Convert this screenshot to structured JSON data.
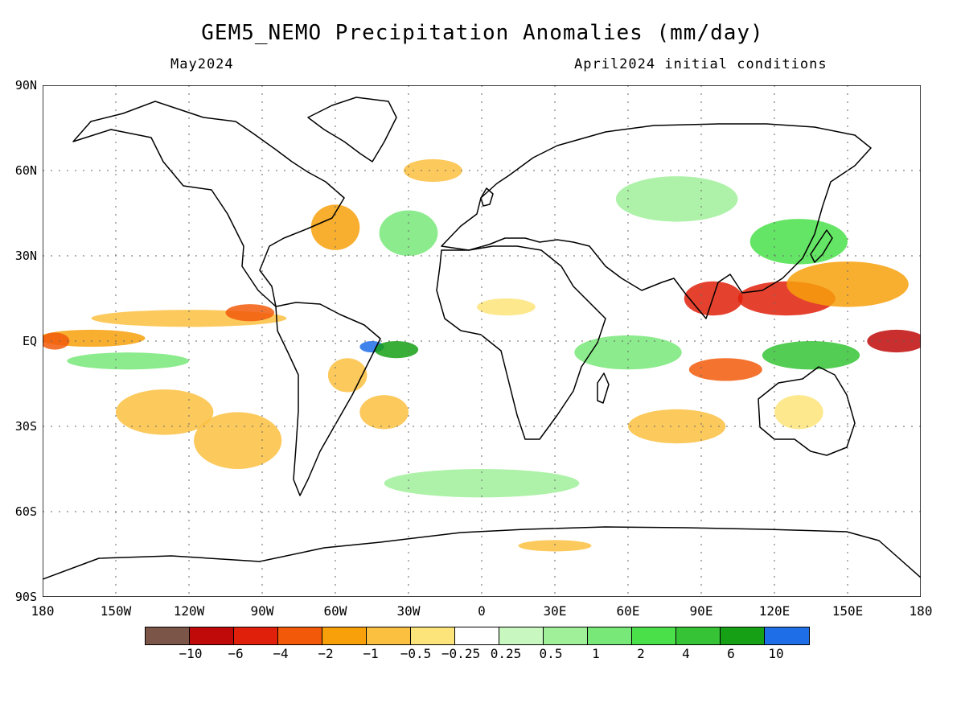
{
  "title": "GEM5_NEMO Precipitation Anomalies (mm/day)",
  "valid_month": "May2024",
  "init_text": "April2024 initial conditions",
  "lat_labels": [
    "90N",
    "60N",
    "30N",
    "EQ",
    "30S",
    "60S",
    "90S"
  ],
  "lon_labels": [
    "180",
    "150W",
    "120W",
    "90W",
    "60W",
    "30W",
    "0",
    "30E",
    "60E",
    "90E",
    "120E",
    "150E",
    "180"
  ],
  "colorbar": {
    "colors": [
      "#7a5548",
      "#c00a0a",
      "#e0200a",
      "#f25a0a",
      "#f7a00a",
      "#fbc040",
      "#fde47a",
      "#ffffff",
      "#c8f8c0",
      "#a0f09a",
      "#78e878",
      "#4ae04a",
      "#36c436",
      "#16a016",
      "#1e6ee8"
    ],
    "labels": [
      "−10",
      "−6",
      "−4",
      "−2",
      "−1",
      "−0.5",
      "−0.25",
      "0.25",
      "0.5",
      "1",
      "2",
      "4",
      "6",
      "10"
    ]
  },
  "anomaly_blobs": [
    {
      "lon": -160,
      "lat": 1,
      "rx": 22,
      "ry": 3,
      "color": "#f7a00a"
    },
    {
      "lon": -175,
      "lat": 0,
      "rx": 6,
      "ry": 3,
      "color": "#f25a0a"
    },
    {
      "lon": -120,
      "lat": 8,
      "rx": 40,
      "ry": 3,
      "color": "#fbc040"
    },
    {
      "lon": -95,
      "lat": 10,
      "rx": 10,
      "ry": 3,
      "color": "#f25a0a"
    },
    {
      "lon": -145,
      "lat": -7,
      "rx": 25,
      "ry": 3,
      "color": "#78e878"
    },
    {
      "lon": -130,
      "lat": -25,
      "rx": 20,
      "ry": 8,
      "color": "#fbc040"
    },
    {
      "lon": -100,
      "lat": -35,
      "rx": 18,
      "ry": 10,
      "color": "#fbc040"
    },
    {
      "lon": -60,
      "lat": 40,
      "rx": 10,
      "ry": 8,
      "color": "#f7a00a"
    },
    {
      "lon": -45,
      "lat": -2,
      "rx": 5,
      "ry": 2,
      "color": "#1e6ee8"
    },
    {
      "lon": -35,
      "lat": -3,
      "rx": 9,
      "ry": 3,
      "color": "#16a016"
    },
    {
      "lon": -55,
      "lat": -12,
      "rx": 8,
      "ry": 6,
      "color": "#fbc040"
    },
    {
      "lon": -40,
      "lat": -25,
      "rx": 10,
      "ry": 6,
      "color": "#fbc040"
    },
    {
      "lon": 10,
      "lat": 12,
      "rx": 12,
      "ry": 3,
      "color": "#fde47a"
    },
    {
      "lon": 60,
      "lat": -4,
      "rx": 22,
      "ry": 6,
      "color": "#78e878"
    },
    {
      "lon": 95,
      "lat": 15,
      "rx": 12,
      "ry": 6,
      "color": "#e0200a"
    },
    {
      "lon": 125,
      "lat": 15,
      "rx": 20,
      "ry": 6,
      "color": "#e0200a"
    },
    {
      "lon": 150,
      "lat": 20,
      "rx": 25,
      "ry": 8,
      "color": "#f7a00a"
    },
    {
      "lon": 170,
      "lat": 0,
      "rx": 12,
      "ry": 4,
      "color": "#c00a0a"
    },
    {
      "lon": 135,
      "lat": -5,
      "rx": 20,
      "ry": 5,
      "color": "#36c436"
    },
    {
      "lon": 100,
      "lat": -10,
      "rx": 15,
      "ry": 4,
      "color": "#f25a0a"
    },
    {
      "lon": 130,
      "lat": 35,
      "rx": 20,
      "ry": 8,
      "color": "#4ae04a"
    },
    {
      "lon": 130,
      "lat": -25,
      "rx": 10,
      "ry": 6,
      "color": "#fde47a"
    },
    {
      "lon": 80,
      "lat": -30,
      "rx": 20,
      "ry": 6,
      "color": "#fbc040"
    },
    {
      "lon": 0,
      "lat": -50,
      "rx": 40,
      "ry": 5,
      "color": "#a0f09a"
    },
    {
      "lon": 30,
      "lat": -72,
      "rx": 15,
      "ry": 2,
      "color": "#fbc040"
    },
    {
      "lon": 80,
      "lat": 50,
      "rx": 25,
      "ry": 8,
      "color": "#a0f09a"
    },
    {
      "lon": -20,
      "lat": 60,
      "rx": 12,
      "ry": 4,
      "color": "#fbc040"
    },
    {
      "lon": -30,
      "lat": 38,
      "rx": 12,
      "ry": 8,
      "color": "#78e878"
    }
  ]
}
